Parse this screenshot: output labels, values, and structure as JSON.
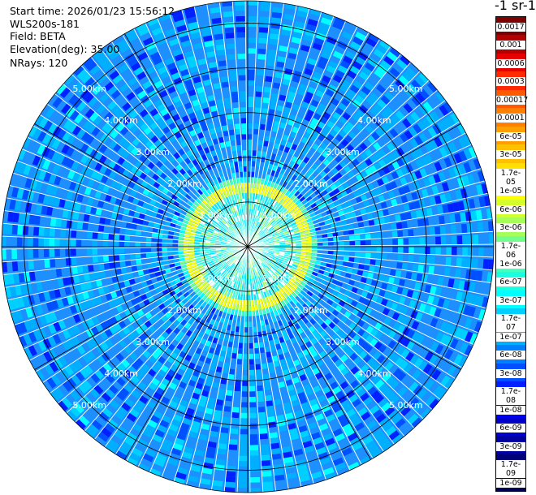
{
  "info": {
    "start_time": "Start time: 2026/01/23 15:56:12",
    "site": "WLS200s-181",
    "field": "Field: BETA",
    "elevation": "Elevation(deg): 35.00",
    "nrays": "NRays: 120"
  },
  "colorbar": {
    "unit": "-1 sr-1",
    "labels": [
      "0.0017",
      "0.001",
      "0.0006",
      "0.0003",
      "0.00017",
      "0.0001",
      "6e-05",
      "3e-05",
      "1.7e-05",
      "1e-05",
      "6e-06",
      "3e-06",
      "1.7e-06",
      "1e-06",
      "6e-07",
      "3e-07",
      "1.7e-07",
      "1e-07",
      "6e-08",
      "3e-08",
      "1.7e-08",
      "1e-08",
      "6e-09",
      "3e-09",
      "1.7e-09",
      "1e-09"
    ],
    "colors": [
      "#7f0000",
      "#b30000",
      "#e60000",
      "#ff2a00",
      "#ff5a00",
      "#ff7f00",
      "#ffa000",
      "#ffc000",
      "#ffe000",
      "#ffff00",
      "#d4ff2b",
      "#a6ff59",
      "#73ff8c",
      "#40ffbf",
      "#1affe0",
      "#00ffff",
      "#00d0ff",
      "#00b0ff",
      "#0080ff",
      "#0050ff",
      "#0020ff",
      "#0000f0",
      "#0000c8",
      "#0000a0",
      "#000078",
      "#000050"
    ]
  },
  "chart_data": {
    "type": "heatmap",
    "projection": "polar PPI",
    "field": "BETA",
    "elevation_deg": 35.0,
    "n_rays": 120,
    "max_range_km": 5.5,
    "range_rings_km": [
      1,
      2,
      3,
      4,
      5
    ],
    "ring_labels": [
      "1.00km",
      "2.00km",
      "3.00km",
      "4.00km",
      "5.00km"
    ],
    "spokes_deg": [
      0,
      30,
      60,
      90,
      120,
      150,
      180,
      210,
      240,
      270,
      300,
      330
    ],
    "typical_value_far_range": "3e-08",
    "near_ring_range_km": [
      1.2,
      1.35
    ],
    "near_ring_value": "1e-05"
  }
}
